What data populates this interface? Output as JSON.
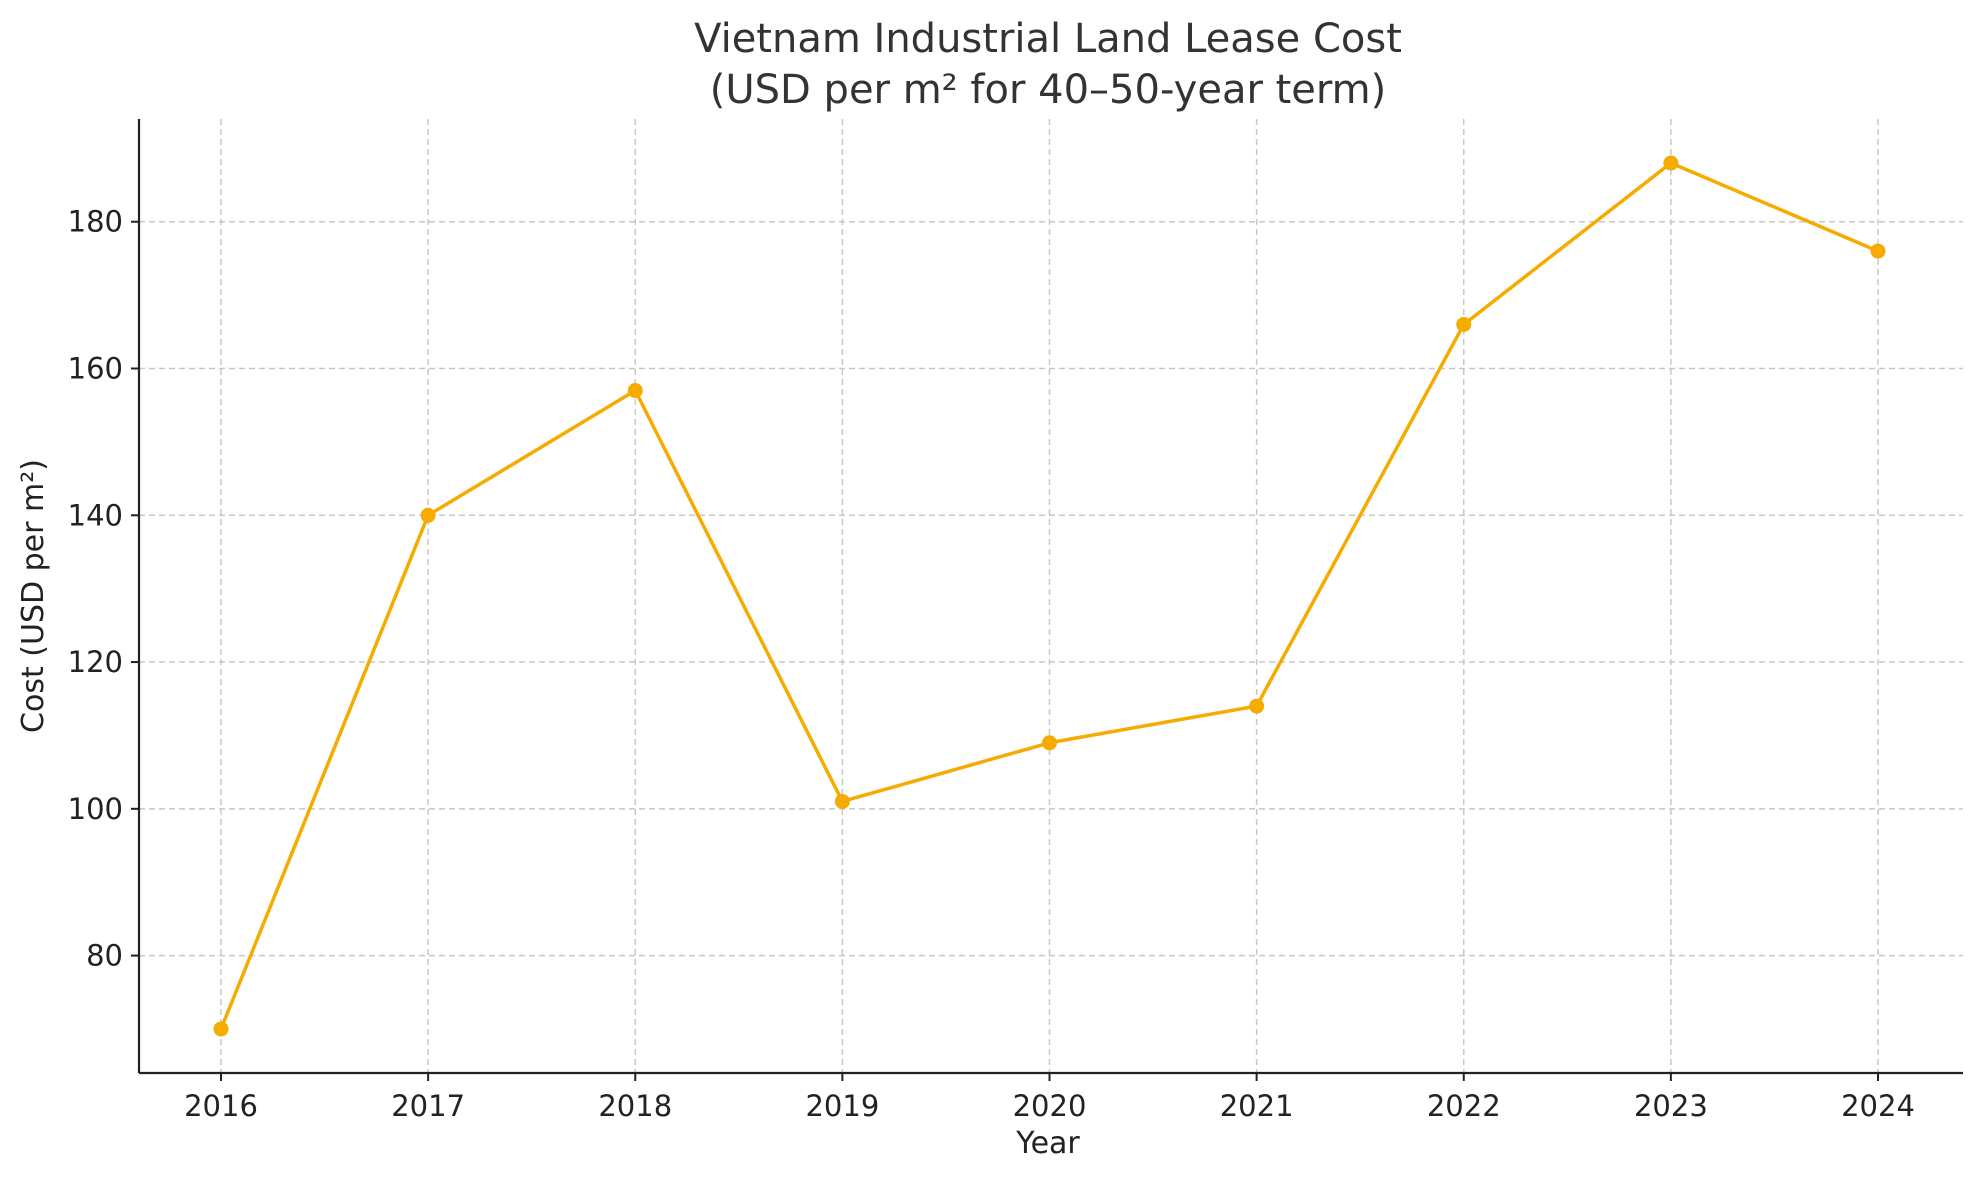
{
  "chart_data": {
    "type": "line",
    "title_line1": "Vietnam Industrial Land Lease Cost",
    "title_line2": "(USD per m² for 40–50-year term)",
    "xlabel": "Year",
    "ylabel": "Cost (USD per m²)",
    "x": [
      "2016",
      "2017",
      "2018",
      "2019",
      "2020",
      "2021",
      "2022",
      "2023",
      "2024"
    ],
    "series": [
      {
        "values": [
          70,
          140,
          157,
          101,
          109,
          114,
          166,
          188,
          176
        ],
        "color": "#f5ab00"
      }
    ],
    "ylim": [
      64,
      194
    ],
    "yticks": [
      80,
      100,
      120,
      140,
      160,
      180
    ],
    "grid": true,
    "grid_style": "dashed",
    "marker": "circle"
  }
}
